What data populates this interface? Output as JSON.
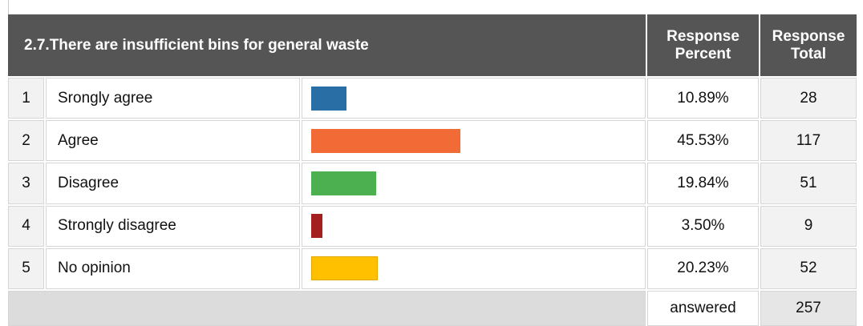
{
  "chart_data": {
    "type": "bar",
    "title": "2.7.There are insufficient bins for general waste",
    "headers": [
      "Response Percent",
      "Response Total"
    ],
    "row_numbers": [
      1,
      2,
      3,
      4,
      5
    ],
    "categories": [
      "Srongly agree",
      "Agree",
      "Disagree",
      "Strongly disagree",
      "No opinion"
    ],
    "values": [
      10.89,
      45.53,
      19.84,
      3.5,
      20.23
    ],
    "value_labels": [
      "10.89%",
      "45.53%",
      "19.84%",
      "3.50%",
      "20.23%"
    ],
    "totals": [
      28,
      117,
      51,
      9,
      52
    ],
    "colors": [
      "#2a6ea6",
      "#f26a35",
      "#4cb050",
      "#a51f1f",
      "#ffc000"
    ],
    "xlim": [
      0,
      100
    ],
    "footer_label": "answered",
    "footer_total": 257
  }
}
